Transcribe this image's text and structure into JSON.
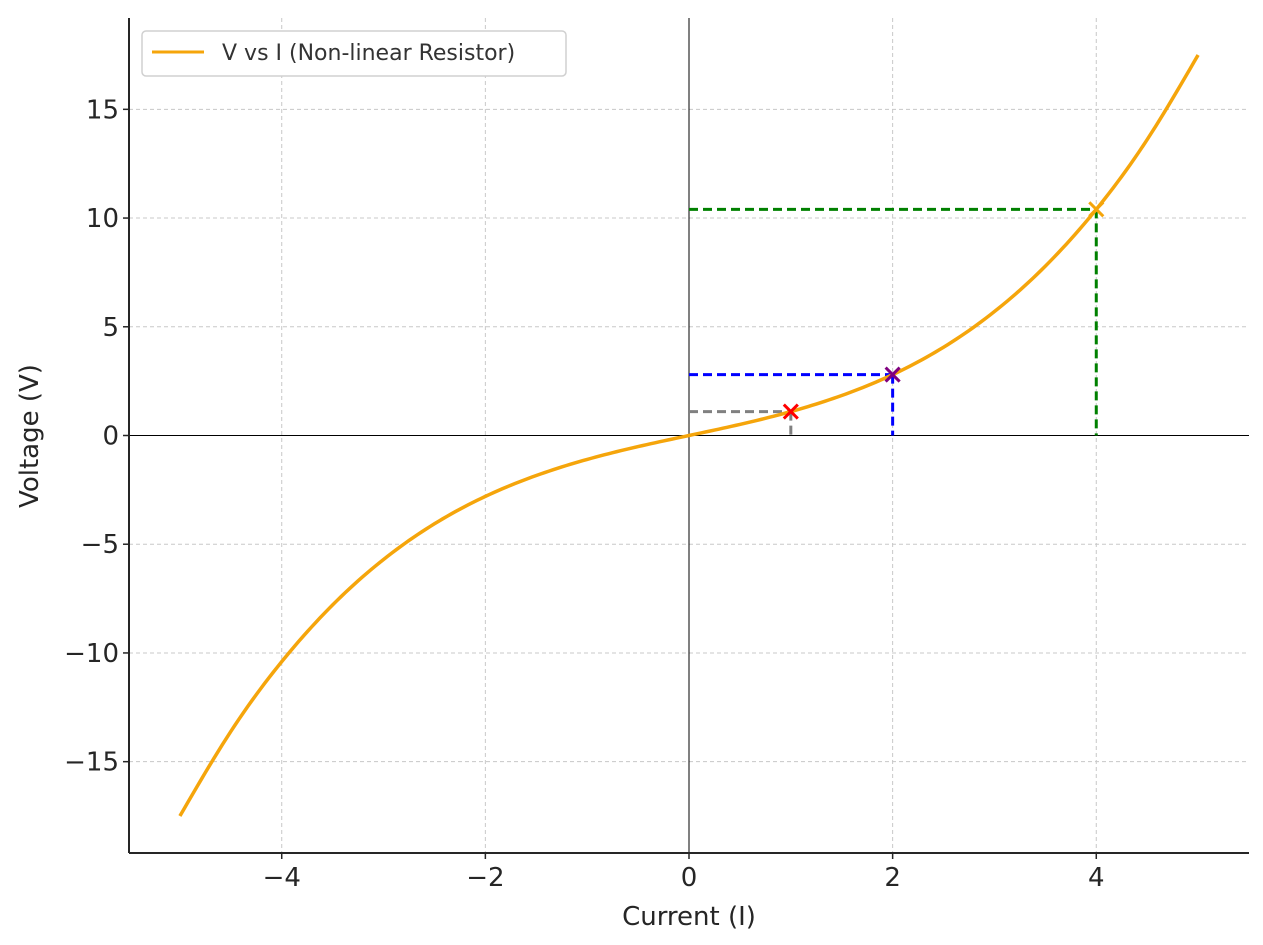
{
  "chart_data": {
    "type": "line",
    "xlabel": "Current (I)",
    "ylabel": "Voltage (V)",
    "xlim": [
      -5.5,
      5.5
    ],
    "ylim": [
      -19.2,
      19.2
    ],
    "x_ticks": [
      -4,
      -2,
      0,
      2,
      4
    ],
    "y_ticks": [
      -15,
      -10,
      -5,
      0,
      5,
      10,
      15
    ],
    "x_tick_labels": [
      "−4",
      "−2",
      "0",
      "2",
      "4"
    ],
    "y_tick_labels": [
      "−15",
      "−10",
      "−5",
      "0",
      "5",
      "10",
      "15"
    ],
    "grid": true,
    "legend": {
      "position": "top-left",
      "entries": [
        "V vs I (Non-linear Resistor)"
      ]
    },
    "series": [
      {
        "name": "V vs I (Non-linear Resistor)",
        "color": "#f5a50b",
        "x": [
          -5,
          -4.5,
          -4,
          -3.5,
          -3,
          -2.5,
          -2,
          -1.5,
          -1,
          -0.5,
          0,
          0.5,
          1,
          1.5,
          2,
          2.5,
          3,
          3.5,
          4,
          4.5,
          5
        ],
        "y": [
          -17.5,
          -13.61,
          -10.4,
          -7.79,
          -5.7,
          -4.06,
          -2.8,
          -1.84,
          -1.1,
          -0.51,
          0,
          0.51,
          1.1,
          1.84,
          2.8,
          4.06,
          5.7,
          7.79,
          10.4,
          13.61,
          17.5
        ]
      }
    ],
    "markers": [
      {
        "x": 1,
        "y": 1.1,
        "color": "#ff0000",
        "symbol": "x"
      },
      {
        "x": 2,
        "y": 2.8,
        "color": "#800080",
        "symbol": "x"
      },
      {
        "x": 4,
        "y": 10.4,
        "color": "#f5a50b",
        "symbol": "x"
      }
    ],
    "guide_lines": [
      {
        "x": 1,
        "y": 1.1,
        "color": "#808080",
        "style": "dashed"
      },
      {
        "x": 2,
        "y": 2.8,
        "color": "#0000ff",
        "style": "dashed"
      },
      {
        "x": 4,
        "y": 10.4,
        "color": "#008000",
        "style": "dashed"
      }
    ],
    "zero_lines": true
  }
}
